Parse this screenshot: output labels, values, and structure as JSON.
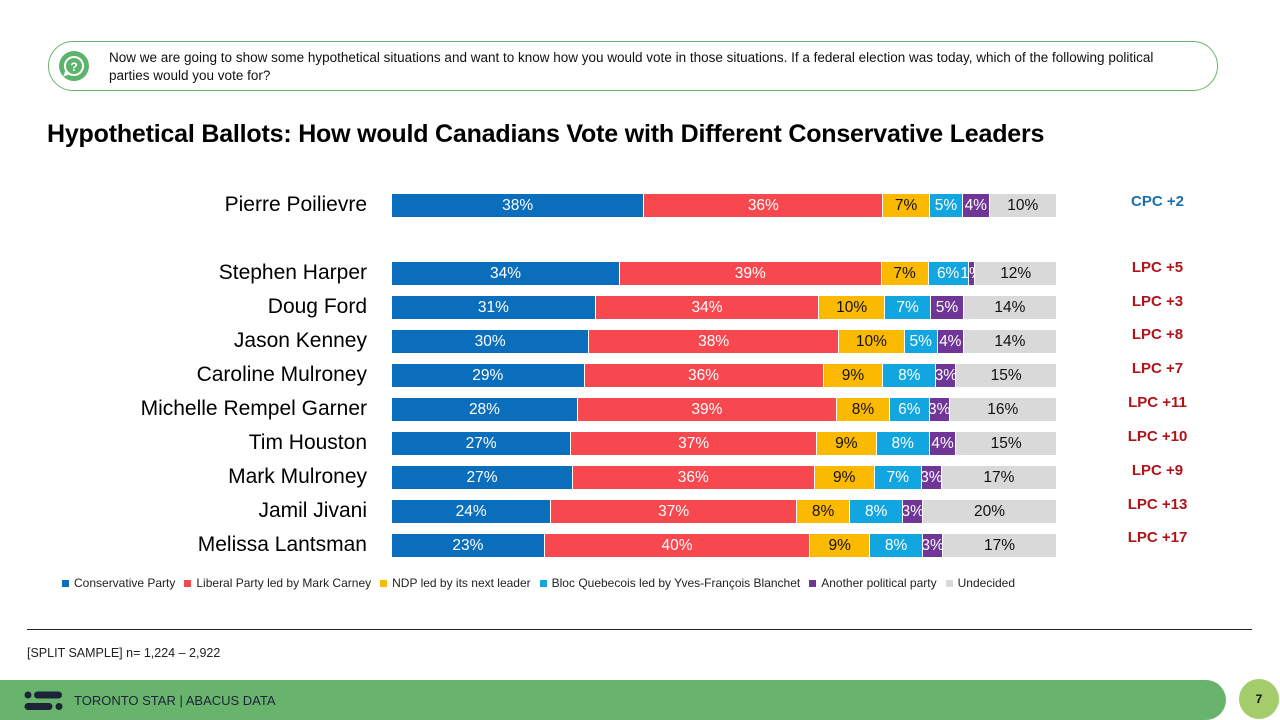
{
  "question": {
    "icon": "question-chat-icon",
    "text": "Now we are going to show some hypothetical situations and want to know how you would vote in those situations. If a federal election was today, which of the following political parties would you vote for?"
  },
  "footer": {
    "sample_note": "[SPLIT SAMPLE] n= 1,224 – 2,922",
    "brand": "TORONTO STAR  |  ABACUS DATA",
    "logo_icon": "abacus-logo-icon",
    "page_number": "7"
  },
  "chart_data": {
    "type": "bar",
    "orientation": "horizontal",
    "stacked": true,
    "title": "Hypothetical Ballots: How would Canadians Vote with Different Conservative Leaders",
    "xlabel": "",
    "ylabel": "",
    "unit": "%",
    "legend_position": "bottom",
    "series": [
      {
        "name": "Conservative Party",
        "color": "#0a6ebd",
        "label_color": "#ffffff"
      },
      {
        "name": "Liberal Party led by Mark Carney",
        "color": "#f7474f",
        "label_color": "#ffffff"
      },
      {
        "name": "NDP led by its next leader",
        "color": "#fbb900",
        "label_color": "#111111"
      },
      {
        "name": "Bloc Quebecois led by Yves-François Blanchet",
        "color": "#12a6e0",
        "label_color": "#ffffff"
      },
      {
        "name": "Another political party",
        "color": "#6f3597",
        "label_color": "#ffffff"
      },
      {
        "name": "Undecided",
        "color": "#d9d9d9",
        "label_color": "#111111"
      }
    ],
    "rows": [
      {
        "leader": "Pierre Poilievre",
        "values": [
          38,
          36,
          7,
          5,
          4,
          10
        ],
        "lead": "CPC +2",
        "lead_party": "CPC"
      },
      {
        "leader": "Stephen Harper",
        "values": [
          34,
          39,
          7,
          6,
          1,
          12
        ],
        "lead": "LPC +5",
        "lead_party": "LPC"
      },
      {
        "leader": "Doug Ford",
        "values": [
          31,
          34,
          10,
          7,
          5,
          14
        ],
        "lead": "LPC +3",
        "lead_party": "LPC"
      },
      {
        "leader": "Jason Kenney",
        "values": [
          30,
          38,
          10,
          5,
          4,
          14
        ],
        "lead": "LPC +8",
        "lead_party": "LPC"
      },
      {
        "leader": "Caroline Mulroney",
        "values": [
          29,
          36,
          9,
          8,
          3,
          15
        ],
        "lead": "LPC +7",
        "lead_party": "LPC"
      },
      {
        "leader": "Michelle Rempel Garner",
        "values": [
          28,
          39,
          8,
          6,
          3,
          16
        ],
        "lead": "LPC +11",
        "lead_party": "LPC"
      },
      {
        "leader": "Tim Houston",
        "values": [
          27,
          37,
          9,
          8,
          4,
          15
        ],
        "lead": "LPC +10",
        "lead_party": "LPC"
      },
      {
        "leader": "Mark Mulroney",
        "values": [
          27,
          36,
          9,
          7,
          3,
          17
        ],
        "lead": "LPC +9",
        "lead_party": "LPC"
      },
      {
        "leader": "Jamil Jivani",
        "values": [
          24,
          37,
          8,
          8,
          3,
          20
        ],
        "lead": "LPC +13",
        "lead_party": "LPC"
      },
      {
        "leader": "Melissa Lantsman",
        "values": [
          23,
          40,
          9,
          8,
          3,
          17
        ],
        "lead": "LPC +17",
        "lead_party": "LPC"
      }
    ],
    "lead_colors": {
      "CPC": "#1a6fb3",
      "LPC": "#b01419"
    }
  }
}
